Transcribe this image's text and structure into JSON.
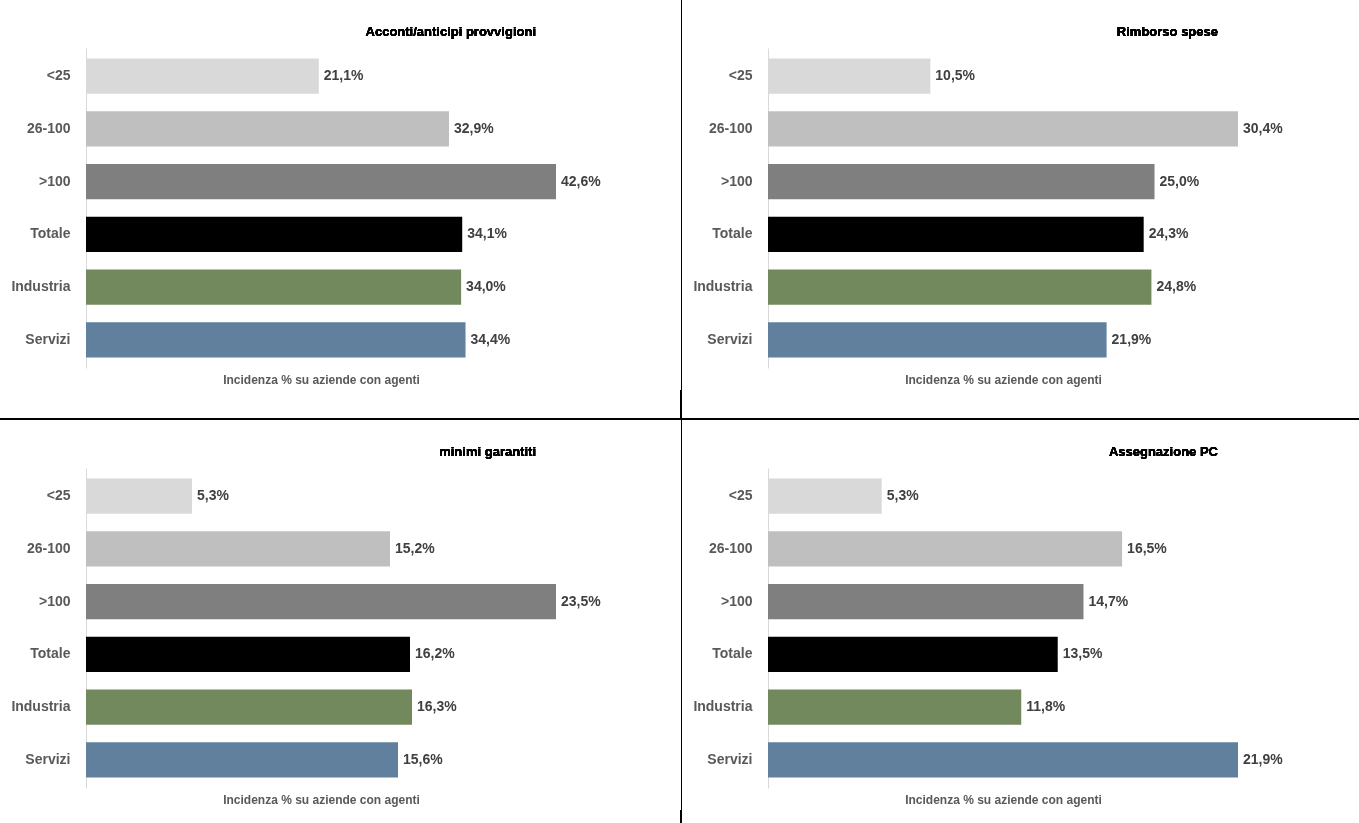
{
  "chart_data": [
    {
      "type": "bar",
      "orientation": "horizontal",
      "title": "Acconti/anticipi provvigioni",
      "xlabel": "Incidenza % su aziende con agenti",
      "categories": [
        "<25",
        "26-100",
        ">100",
        "Totale",
        "Industria",
        "Servizi"
      ],
      "values": [
        21.1,
        32.9,
        42.6,
        34.1,
        34.0,
        34.4
      ],
      "value_labels": [
        "21,1%",
        "32,9%",
        "42,6%",
        "34,1%",
        "34,0%",
        "34,4%"
      ],
      "colors": [
        "#d9d9d9",
        "#bfbfbf",
        "#7f7f7f",
        "#000000",
        "#72895d",
        "#60809e"
      ],
      "tick_labels": "y"
    },
    {
      "type": "bar",
      "orientation": "horizontal",
      "title": "Rimborso spese",
      "xlabel": "Incidenza % su aziende con agenti",
      "categories": [
        "<25",
        "26-100",
        ">100",
        "Totale",
        "Industria",
        "Servizi"
      ],
      "values": [
        10.5,
        30.4,
        25.0,
        24.3,
        24.8,
        21.9
      ],
      "value_labels": [
        "10,5%",
        "30,4%",
        "25,0%",
        "24,3%",
        "24,8%",
        "21,9%"
      ],
      "colors": [
        "#d9d9d9",
        "#bfbfbf",
        "#7f7f7f",
        "#000000",
        "#72895d",
        "#60809e"
      ],
      "tick_labels": "y"
    },
    {
      "type": "bar",
      "orientation": "horizontal",
      "title": "minimi garantiti",
      "xlabel": "Incidenza % su aziende con agenti",
      "categories": [
        "<25",
        "26-100",
        ">100",
        "Totale",
        "Industria",
        "Servizi"
      ],
      "values": [
        5.3,
        15.2,
        23.5,
        16.2,
        16.3,
        15.6
      ],
      "value_labels": [
        "5,3%",
        "15,2%",
        "23,5%",
        "16,2%",
        "16,3%",
        "15,6%"
      ],
      "colors": [
        "#d9d9d9",
        "#bfbfbf",
        "#7f7f7f",
        "#000000",
        "#72895d",
        "#60809e"
      ],
      "tick_labels": "y"
    },
    {
      "type": "bar",
      "orientation": "horizontal",
      "title": "Assegnazione PC",
      "xlabel": "Incidenza % su aziende con agenti",
      "categories": [
        "<25",
        "26-100",
        ">100",
        "Totale",
        "Industria",
        "Servizi"
      ],
      "values": [
        5.3,
        16.5,
        14.7,
        13.5,
        11.8,
        21.9
      ],
      "value_labels": [
        "5,3%",
        "16,5%",
        "14,7%",
        "13,5%",
        "11,8%",
        "21,9%"
      ],
      "colors": [
        "#d9d9d9",
        "#bfbfbf",
        "#7f7f7f",
        "#000000",
        "#72895d",
        "#60809e"
      ],
      "tick_labels": "y"
    }
  ]
}
